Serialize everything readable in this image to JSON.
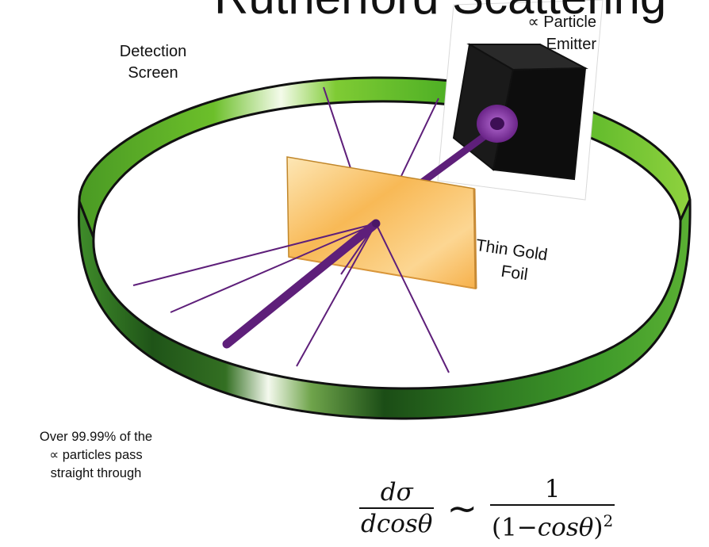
{
  "title": "Rutherford Scattering",
  "labels": {
    "detection_line1": "Detection",
    "detection_line2": "Screen",
    "emitter_line1": "∝ Particle",
    "emitter_line2": "Emitter",
    "foil_line1": "Thin Gold",
    "foil_line2": "Foil",
    "note_line1": "Over 99.99% of the",
    "note_line2": "∝ particles pass",
    "note_line3": "straight through"
  },
  "formula": {
    "lhs_num": "dσ",
    "lhs_den": "dcosθ",
    "relation": "∼",
    "rhs_num": "1",
    "rhs_den_open": "(1−",
    "rhs_den_body": "cosθ",
    "rhs_den_close": ")",
    "rhs_den_exp": "2"
  },
  "colors": {
    "ring_dark": "#1d4f17",
    "ring_mid": "#3f8f2a",
    "ring_light": "#5cb82c",
    "beam": "#5e1f7a",
    "foil": "#f9bf55",
    "emitter": "#111111"
  }
}
